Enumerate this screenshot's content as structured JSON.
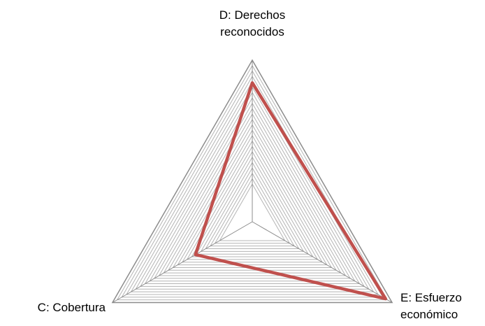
{
  "chart_data": {
    "type": "radar",
    "categories": [
      "D: Derechos reconocidos",
      "E: Esfuerzo económico",
      "C: Cobertura"
    ],
    "series": [
      {
        "color": "#c0504d",
        "values": [
          25.8,
          28.6,
          12.2
        ]
      }
    ],
    "rlim": [
      0,
      30
    ],
    "rticks": [
      7,
      8,
      9,
      10,
      11,
      12,
      13,
      14,
      15,
      16,
      17,
      18,
      19,
      20,
      21,
      22,
      23,
      24,
      25,
      26,
      27,
      28,
      29,
      30
    ],
    "grid": true
  }
}
